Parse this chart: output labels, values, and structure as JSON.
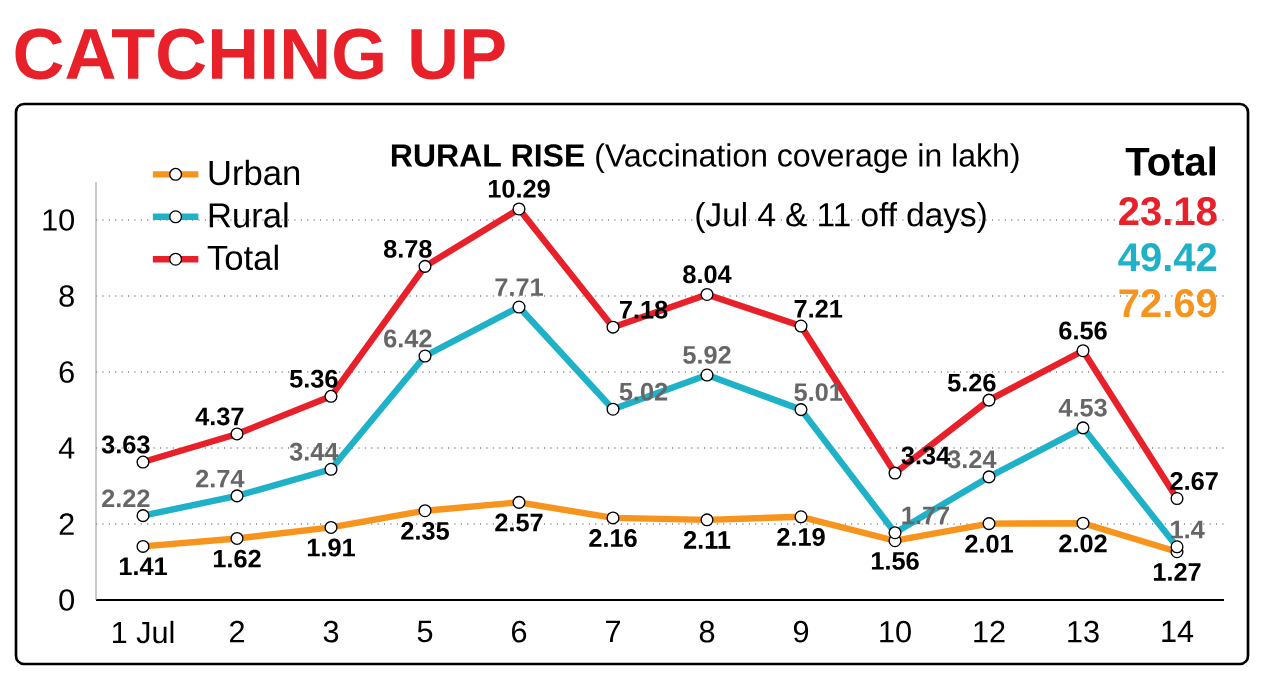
{
  "chart_data": {
    "type": "line",
    "title": "CATCHING UP",
    "subtitle": "**RURAL RISE** (Vaccination coverage in lakh)",
    "annotations": [
      "(Jul 4 & 11 off days)",
      "Total",
      "23.18",
      "49.42",
      "72.69"
    ],
    "categories": [
      "1 Jul",
      "2",
      "3",
      "5",
      "6",
      "7",
      "8",
      "9",
      "10",
      "12",
      "13",
      "14"
    ],
    "series": [
      {
        "name": "Urban",
        "color": "#f7941d",
        "values": [
          1.41,
          1.62,
          1.91,
          2.35,
          2.57,
          2.16,
          2.11,
          2.19,
          1.56,
          2.01,
          2.02,
          1.27
        ]
      },
      {
        "name": "Rural",
        "color": "#1eb1c8",
        "values": [
          2.22,
          2.74,
          3.44,
          6.42,
          7.71,
          5.02,
          5.92,
          5.01,
          1.77,
          3.24,
          4.53,
          1.4
        ]
      },
      {
        "name": "Total",
        "color": "#e8202a",
        "values": [
          3.63,
          4.37,
          5.36,
          8.78,
          10.29,
          7.18,
          8.04,
          7.21,
          3.34,
          5.26,
          6.56,
          2.67
        ]
      }
    ],
    "ylim": [
      0,
      11
    ],
    "yticks": [
      0,
      2,
      4,
      6,
      8,
      10
    ],
    "grid": "y",
    "legend": "top left",
    "marker": "circle",
    "line_style": "solid",
    "data_labels": true
  }
}
